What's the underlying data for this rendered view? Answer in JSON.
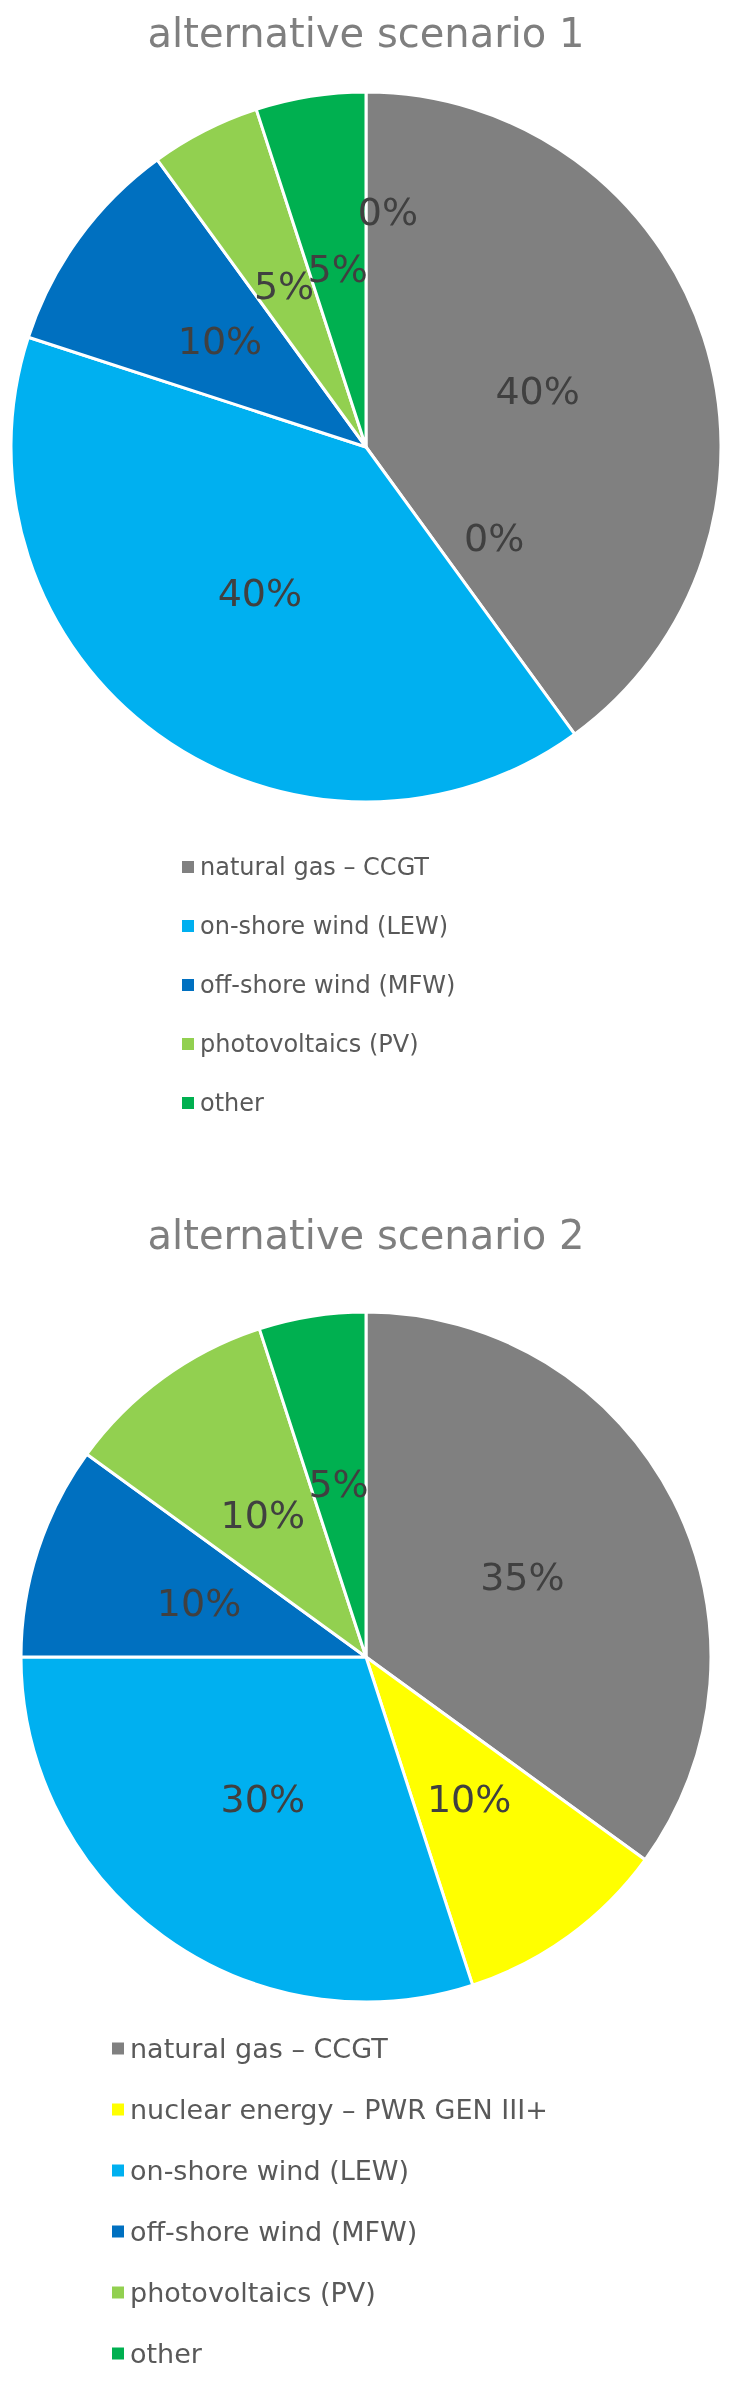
{
  "chart_data": [
    {
      "type": "pie",
      "title": "alternative scenario 1",
      "categories": [
        "natural gas – CCGT",
        null,
        "on-shore wind (LEW)",
        "off-shore wind (MFW)",
        "photovoltaics (PV)",
        "other",
        null
      ],
      "values": [
        40,
        0,
        40,
        10,
        5,
        5,
        0
      ],
      "value_labels": [
        "40%",
        "0%",
        "40%",
        "10%",
        "5%",
        "5%",
        "0%"
      ],
      "colors": [
        "#808080",
        "#ffff00",
        "#00b0f0",
        "#0070c0",
        "#92d050",
        "#00b050",
        "#c00000"
      ],
      "legend": "bottom"
    },
    {
      "type": "pie",
      "title": "alternative scenario 2",
      "categories": [
        "natural gas – CCGT",
        "nuclear energy – PWR GEN III+",
        "on-shore wind (LEW)",
        "off-shore wind (MFW)",
        "photovoltaics (PV)",
        "other"
      ],
      "values": [
        35,
        10,
        30,
        10,
        10,
        5
      ],
      "value_labels": [
        "35%",
        "10%",
        "30%",
        "10%",
        "10%",
        "5%"
      ],
      "colors": [
        "#808080",
        "#ffff00",
        "#00b0f0",
        "#0070c0",
        "#92d050",
        "#00b050"
      ],
      "legend": "bottom"
    }
  ]
}
